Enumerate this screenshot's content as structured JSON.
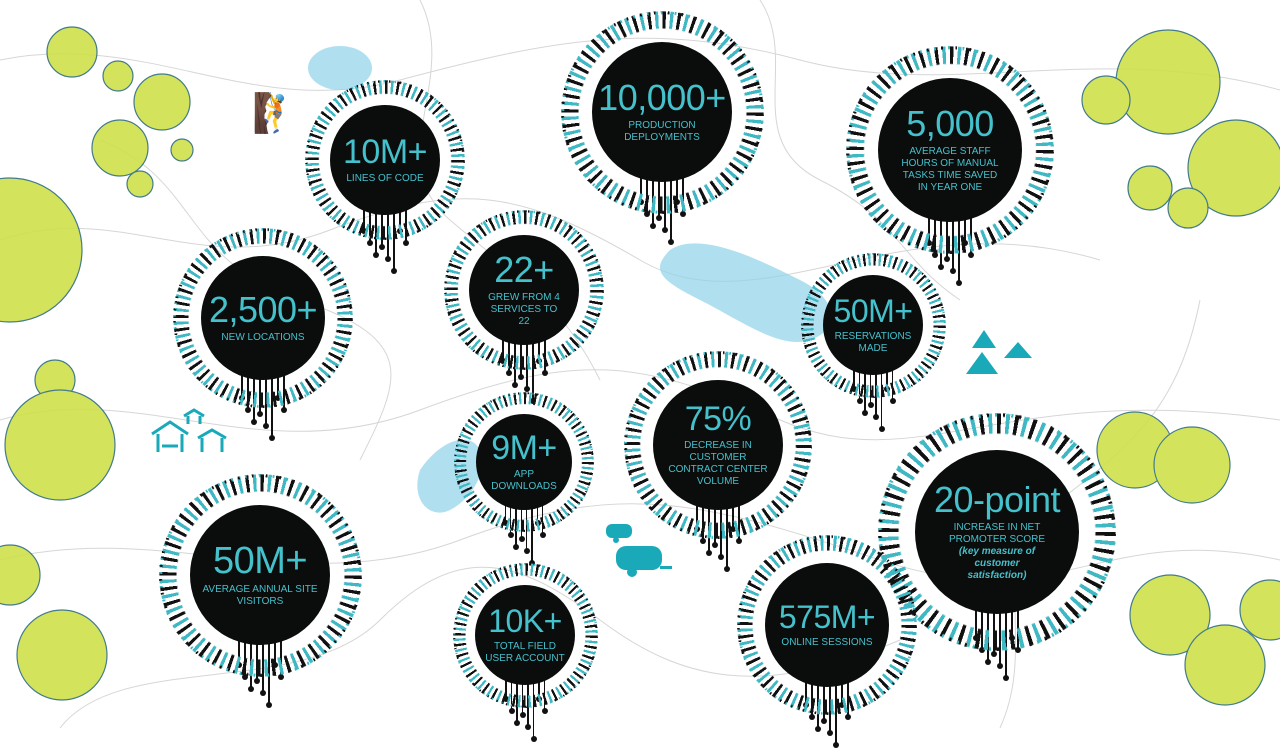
{
  "stats": [
    {
      "value": "10M+",
      "label": "LINES OF CODE"
    },
    {
      "value": "10,000+",
      "label": "PRODUCTION DEPLOYMENTS"
    },
    {
      "value": "5,000",
      "label": "AVERAGE STAFF HOURS OF MANUAL TASKS TIME SAVED IN YEAR ONE"
    },
    {
      "value": "2,500+",
      "label": "NEW LOCATIONS"
    },
    {
      "value": "22+",
      "label": "GREW FROM 4 SERVICES TO 22"
    },
    {
      "value": "50M+",
      "label": "RESERVATIONS MADE"
    },
    {
      "value": "75%",
      "label": "DECREASE IN CUSTOMER CONTRACT CENTER VOLUME"
    },
    {
      "value": "9M+",
      "label": "APP DOWNLOADS"
    },
    {
      "value": "20-point",
      "label": "INCREASE IN NET PROMOTER SCORE",
      "note": "(key measure of customer satisfaction)"
    },
    {
      "value": "50M+",
      "label": "AVERAGE ANNUAL SITE VISITORS"
    },
    {
      "value": "10K+",
      "label": "TOTAL FIELD USER ACCOUNT"
    },
    {
      "value": "575M+",
      "label": "ONLINE SESSIONS"
    }
  ],
  "icons": [
    "hiker-icon",
    "picnic-shelter-icon",
    "tent-icon",
    "camper-trailer-icon"
  ],
  "colors": {
    "accent": "#45c1cc",
    "disk": "#0b0c0c",
    "tree": "#cfe04a",
    "lake": "#8fd3ea",
    "icon": "#1aa9b8"
  }
}
